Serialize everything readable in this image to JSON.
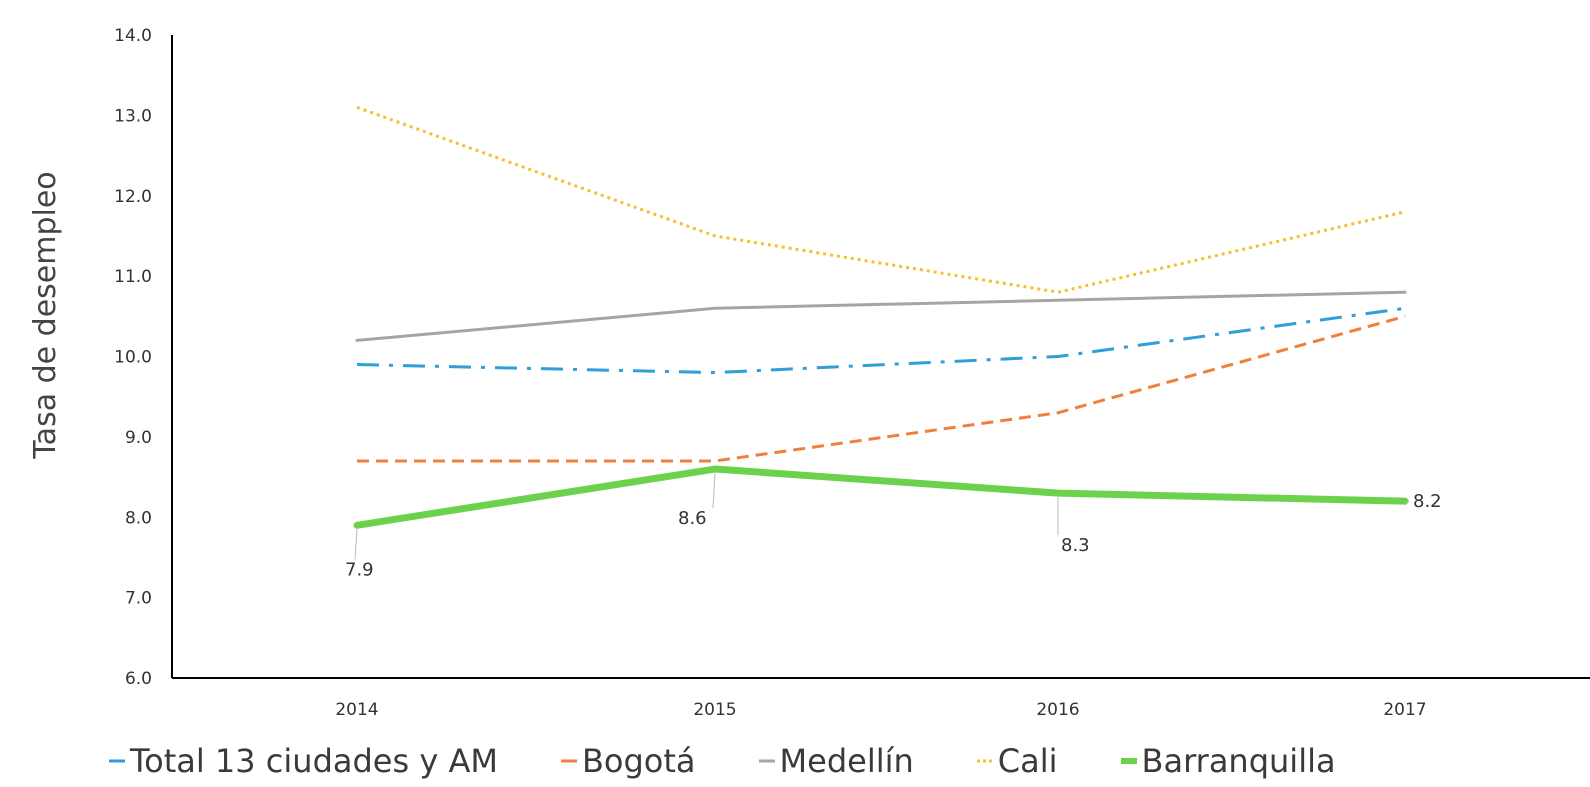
{
  "chart_data": {
    "type": "line",
    "ylabel": "Tasa de desempleo",
    "xlabel": "",
    "categories": [
      "2014",
      "2015",
      "2016",
      "2017"
    ],
    "ylim": [
      6.0,
      14.0
    ],
    "yticks": [
      "6.0",
      "7.0",
      "8.0",
      "9.0",
      "10.0",
      "11.0",
      "12.0",
      "13.0",
      "14.0"
    ],
    "legend_position": "bottom",
    "grid": false,
    "series": [
      {
        "name": "Total 13 ciudades y AM",
        "values": [
          9.9,
          9.8,
          10.0,
          10.6
        ],
        "color": "#2e9fd8",
        "style": "dash-dot",
        "width": 3
      },
      {
        "name": "Bogotá",
        "values": [
          8.7,
          8.7,
          9.3,
          10.5
        ],
        "color": "#f07f3c",
        "style": "dashed",
        "width": 3
      },
      {
        "name": "Medellín",
        "values": [
          10.2,
          10.6,
          10.7,
          10.8
        ],
        "color": "#a5a5a5",
        "style": "solid",
        "width": 3
      },
      {
        "name": "Cali",
        "values": [
          13.1,
          11.5,
          10.8,
          11.8
        ],
        "color": "#f5c02e",
        "style": "dotted",
        "width": 3
      },
      {
        "name": "Barranquilla",
        "values": [
          7.9,
          8.6,
          8.3,
          8.2
        ],
        "color": "#6cd24e",
        "style": "solid",
        "width": 7,
        "labels": [
          "7.9",
          "8.6",
          "8.3",
          "8.2"
        ]
      }
    ]
  }
}
